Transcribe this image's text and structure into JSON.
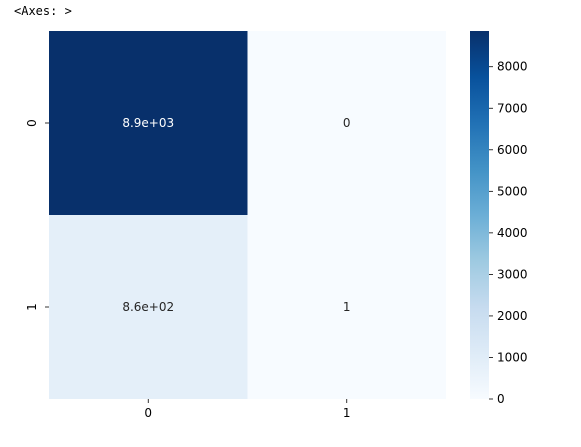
{
  "header": {
    "repr": "<Axes: >"
  },
  "chart_data": {
    "type": "heatmap",
    "title": "",
    "xlabel": "",
    "ylabel": "",
    "x_categories": [
      "0",
      "1"
    ],
    "y_categories": [
      "0",
      "1"
    ],
    "values": [
      [
        8900,
        0
      ],
      [
        860,
        1
      ]
    ],
    "annotations": [
      [
        "8.9e+03",
        "0"
      ],
      [
        "8.6e+02",
        "1"
      ]
    ],
    "colormap": "Blues",
    "colorbar": {
      "min": 0,
      "max": 8860,
      "ticks": [
        0,
        1000,
        2000,
        3000,
        4000,
        5000,
        6000,
        7000,
        8000
      ]
    },
    "grid": false
  }
}
